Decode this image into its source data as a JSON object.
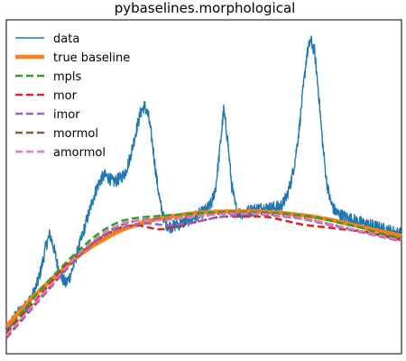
{
  "chart_data": {
    "type": "line",
    "title": "pybaselines.morphological",
    "xlabel": "",
    "ylabel": "",
    "xlim": [
      0,
      1000
    ],
    "ylim": [
      -0.4,
      7.0
    ],
    "grid": false,
    "ticks_visible": false,
    "legend_placement": "top-left",
    "x_step": 10,
    "series": [
      {
        "name": "data",
        "color": "#1f77b4",
        "style": "solid",
        "values": [
          0.1,
          0.25,
          0.4,
          0.5,
          0.58,
          0.66,
          0.8,
          0.95,
          1.2,
          1.55,
          1.98,
          2.25,
          1.95,
          1.55,
          1.3,
          1.15,
          1.3,
          1.55,
          1.85,
          2.15,
          2.45,
          2.75,
          3.05,
          3.3,
          3.48,
          3.55,
          3.5,
          3.4,
          3.45,
          3.5,
          3.6,
          3.85,
          4.2,
          4.6,
          4.95,
          5.1,
          4.85,
          4.25,
          3.5,
          2.9,
          2.55,
          2.42,
          2.42,
          2.45,
          2.48,
          2.52,
          2.56,
          2.6,
          2.65,
          2.7,
          2.75,
          2.82,
          2.95,
          3.3,
          4.1,
          5.0,
          4.35,
          3.35,
          2.85,
          2.72,
          2.72,
          2.75,
          2.78,
          2.8,
          2.82,
          2.83,
          2.83,
          2.83,
          2.84,
          2.86,
          2.92,
          3.1,
          3.4,
          3.85,
          4.5,
          5.35,
          6.2,
          6.55,
          6.3,
          5.4,
          4.3,
          3.45,
          2.98,
          2.78,
          2.7,
          2.66,
          2.62,
          2.59,
          2.56,
          2.53,
          2.5,
          2.47,
          2.45,
          2.43,
          2.4,
          2.37,
          2.35,
          2.32,
          2.3,
          2.27,
          2.26
        ]
      },
      {
        "name": "true baseline",
        "color": "#ff7f0e",
        "style": "solid",
        "values": [
          0.2,
          0.3,
          0.4,
          0.5,
          0.6,
          0.7,
          0.79,
          0.88,
          0.96,
          1.05,
          1.13,
          1.21,
          1.29,
          1.37,
          1.45,
          1.53,
          1.6,
          1.68,
          1.75,
          1.82,
          1.88,
          1.94,
          2.0,
          2.05,
          2.1,
          2.15,
          2.2,
          2.25,
          2.29,
          2.33,
          2.37,
          2.4,
          2.43,
          2.46,
          2.49,
          2.51,
          2.54,
          2.56,
          2.58,
          2.6,
          2.62,
          2.63,
          2.65,
          2.66,
          2.67,
          2.69,
          2.7,
          2.71,
          2.72,
          2.73,
          2.73,
          2.74,
          2.74,
          2.75,
          2.75,
          2.75,
          2.76,
          2.76,
          2.76,
          2.76,
          2.76,
          2.76,
          2.76,
          2.76,
          2.75,
          2.75,
          2.74,
          2.74,
          2.73,
          2.73,
          2.72,
          2.71,
          2.7,
          2.69,
          2.68,
          2.67,
          2.66,
          2.65,
          2.63,
          2.62,
          2.6,
          2.59,
          2.57,
          2.55,
          2.53,
          2.51,
          2.49,
          2.47,
          2.45,
          2.43,
          2.41,
          2.39,
          2.37,
          2.35,
          2.33,
          2.31,
          2.29,
          2.27,
          2.25,
          2.23,
          2.21
        ]
      },
      {
        "name": "mpls",
        "color": "#2ca02c",
        "style": "dashed",
        "values": [
          0.05,
          0.17,
          0.29,
          0.41,
          0.52,
          0.63,
          0.74,
          0.85,
          0.95,
          1.05,
          1.15,
          1.25,
          1.34,
          1.43,
          1.52,
          1.61,
          1.7,
          1.78,
          1.86,
          1.94,
          2.02,
          2.1,
          2.17,
          2.24,
          2.3,
          2.36,
          2.41,
          2.46,
          2.5,
          2.54,
          2.56,
          2.58,
          2.6,
          2.61,
          2.62,
          2.63,
          2.64,
          2.64,
          2.65,
          2.66,
          2.66,
          2.67,
          2.68,
          2.68,
          2.69,
          2.69,
          2.7,
          2.7,
          2.71,
          2.72,
          2.72,
          2.73,
          2.73,
          2.73,
          2.74,
          2.74,
          2.74,
          2.74,
          2.74,
          2.74,
          2.74,
          2.74,
          2.74,
          2.74,
          2.74,
          2.73,
          2.73,
          2.72,
          2.72,
          2.71,
          2.71,
          2.7,
          2.69,
          2.68,
          2.67,
          2.66,
          2.65,
          2.64,
          2.62,
          2.61,
          2.59,
          2.57,
          2.55,
          2.53,
          2.51,
          2.49,
          2.47,
          2.45,
          2.43,
          2.41,
          2.39,
          2.36,
          2.33,
          2.31,
          2.28,
          2.26,
          2.24,
          2.22,
          2.2,
          2.18,
          2.16
        ]
      },
      {
        "name": "mor",
        "color": "#d62728",
        "style": "dashed",
        "values": [
          0.05,
          0.15,
          0.25,
          0.35,
          0.45,
          0.55,
          0.65,
          0.75,
          0.85,
          0.95,
          1.05,
          1.15,
          1.25,
          1.35,
          1.45,
          1.55,
          1.62,
          1.7,
          1.78,
          1.86,
          1.94,
          2.0,
          2.06,
          2.12,
          2.18,
          2.24,
          2.28,
          2.32,
          2.36,
          2.4,
          2.42,
          2.44,
          2.44,
          2.44,
          2.44,
          2.42,
          2.4,
          2.38,
          2.36,
          2.36,
          2.36,
          2.38,
          2.4,
          2.42,
          2.44,
          2.46,
          2.48,
          2.5,
          2.52,
          2.54,
          2.56,
          2.58,
          2.6,
          2.62,
          2.63,
          2.64,
          2.64,
          2.64,
          2.64,
          2.64,
          2.64,
          2.64,
          2.64,
          2.64,
          2.64,
          2.64,
          2.63,
          2.62,
          2.6,
          2.58,
          2.56,
          2.54,
          2.52,
          2.5,
          2.48,
          2.46,
          2.45,
          2.44,
          2.43,
          2.42,
          2.41,
          2.4,
          2.39,
          2.38,
          2.37,
          2.36,
          2.35,
          2.34,
          2.33,
          2.32,
          2.31,
          2.3,
          2.28,
          2.26,
          2.24,
          2.22,
          2.2,
          2.18,
          2.16,
          2.14,
          2.12
        ]
      },
      {
        "name": "imor",
        "color": "#9467bd",
        "style": "dashed",
        "values": [
          -0.05,
          0.05,
          0.15,
          0.25,
          0.35,
          0.45,
          0.55,
          0.65,
          0.75,
          0.85,
          0.95,
          1.05,
          1.15,
          1.25,
          1.35,
          1.45,
          1.55,
          1.64,
          1.73,
          1.82,
          1.9,
          1.97,
          2.04,
          2.1,
          2.16,
          2.22,
          2.27,
          2.31,
          2.35,
          2.38,
          2.41,
          2.43,
          2.45,
          2.47,
          2.48,
          2.49,
          2.49,
          2.48,
          2.47,
          2.46,
          2.45,
          2.45,
          2.45,
          2.46,
          2.47,
          2.48,
          2.49,
          2.5,
          2.52,
          2.54,
          2.56,
          2.58,
          2.6,
          2.62,
          2.63,
          2.64,
          2.65,
          2.66,
          2.67,
          2.68,
          2.68,
          2.69,
          2.69,
          2.69,
          2.69,
          2.68,
          2.68,
          2.67,
          2.66,
          2.65,
          2.64,
          2.63,
          2.62,
          2.61,
          2.6,
          2.59,
          2.57,
          2.55,
          2.53,
          2.51,
          2.49,
          2.47,
          2.45,
          2.43,
          2.41,
          2.39,
          2.37,
          2.35,
          2.33,
          2.31,
          2.29,
          2.27,
          2.25,
          2.23,
          2.21,
          2.19,
          2.17,
          2.15,
          2.13,
          2.11,
          2.1
        ]
      },
      {
        "name": "mormol",
        "color": "#8c564b",
        "style": "dashed",
        "values": [
          -0.05,
          0.06,
          0.17,
          0.28,
          0.38,
          0.48,
          0.58,
          0.68,
          0.78,
          0.88,
          0.98,
          1.08,
          1.18,
          1.28,
          1.38,
          1.48,
          1.57,
          1.66,
          1.75,
          1.84,
          1.92,
          2.0,
          2.07,
          2.14,
          2.2,
          2.26,
          2.32,
          2.37,
          2.41,
          2.45,
          2.48,
          2.51,
          2.53,
          2.55,
          2.56,
          2.57,
          2.58,
          2.58,
          2.58,
          2.58,
          2.58,
          2.58,
          2.59,
          2.59,
          2.6,
          2.61,
          2.62,
          2.63,
          2.64,
          2.65,
          2.66,
          2.67,
          2.68,
          2.69,
          2.7,
          2.7,
          2.71,
          2.71,
          2.71,
          2.71,
          2.71,
          2.71,
          2.71,
          2.71,
          2.7,
          2.7,
          2.69,
          2.69,
          2.68,
          2.67,
          2.66,
          2.65,
          2.64,
          2.63,
          2.62,
          2.61,
          2.59,
          2.57,
          2.55,
          2.53,
          2.51,
          2.49,
          2.47,
          2.45,
          2.43,
          2.41,
          2.39,
          2.37,
          2.35,
          2.33,
          2.31,
          2.29,
          2.27,
          2.25,
          2.23,
          2.21,
          2.19,
          2.17,
          2.15,
          2.13,
          2.11
        ]
      },
      {
        "name": "amormol",
        "color": "#e377c2",
        "style": "dashed",
        "values": [
          0.0,
          0.1,
          0.2,
          0.3,
          0.4,
          0.5,
          0.6,
          0.7,
          0.8,
          0.9,
          1.0,
          1.1,
          1.2,
          1.3,
          1.4,
          1.5,
          1.6,
          1.69,
          1.78,
          1.87,
          1.95,
          2.03,
          2.1,
          2.17,
          2.23,
          2.29,
          2.34,
          2.39,
          2.43,
          2.47,
          2.5,
          2.52,
          2.54,
          2.55,
          2.56,
          2.56,
          2.56,
          2.56,
          2.56,
          2.56,
          2.56,
          2.57,
          2.58,
          2.59,
          2.6,
          2.61,
          2.62,
          2.63,
          2.64,
          2.65,
          2.66,
          2.67,
          2.68,
          2.69,
          2.7,
          2.7,
          2.71,
          2.71,
          2.71,
          2.71,
          2.71,
          2.71,
          2.71,
          2.71,
          2.7,
          2.7,
          2.69,
          2.69,
          2.68,
          2.67,
          2.66,
          2.65,
          2.64,
          2.63,
          2.62,
          2.61,
          2.59,
          2.57,
          2.55,
          2.53,
          2.51,
          2.49,
          2.47,
          2.45,
          2.43,
          2.41,
          2.39,
          2.37,
          2.35,
          2.33,
          2.31,
          2.29,
          2.27,
          2.25,
          2.23,
          2.21,
          2.19,
          2.17,
          2.15,
          2.13,
          2.12
        ]
      }
    ]
  }
}
